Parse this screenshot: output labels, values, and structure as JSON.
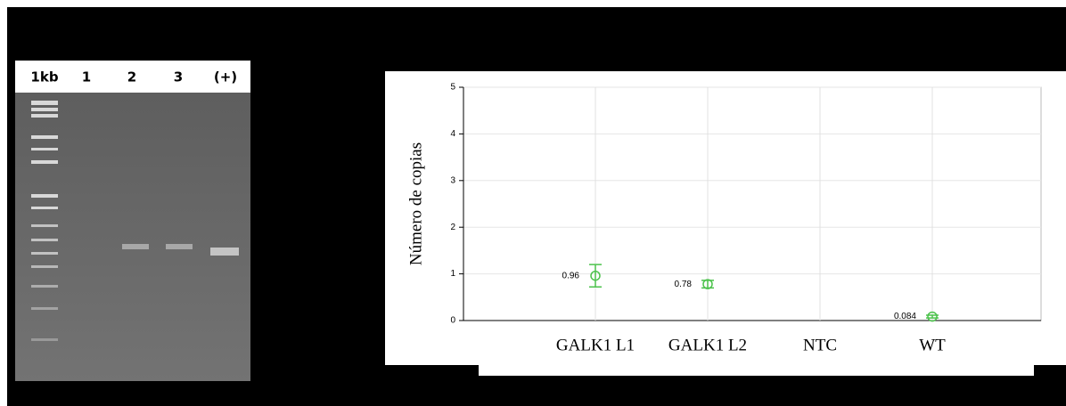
{
  "gel": {
    "lanes": [
      "1kb",
      "1",
      "2",
      "3",
      "(+)"
    ]
  },
  "chart_data": {
    "type": "scatter",
    "y_label": "Número de copias",
    "categories": [
      "GALK1 L1",
      "GALK1 L2",
      "NTC",
      "WT"
    ],
    "values": [
      0.96,
      0.78,
      null,
      0.084
    ],
    "errors": [
      0.24,
      0.08,
      null,
      0.03
    ],
    "color": "#4cc24c",
    "ylim": [
      0,
      5
    ],
    "yticks": [
      0,
      1,
      2,
      3,
      4,
      5
    ],
    "grid": true
  }
}
